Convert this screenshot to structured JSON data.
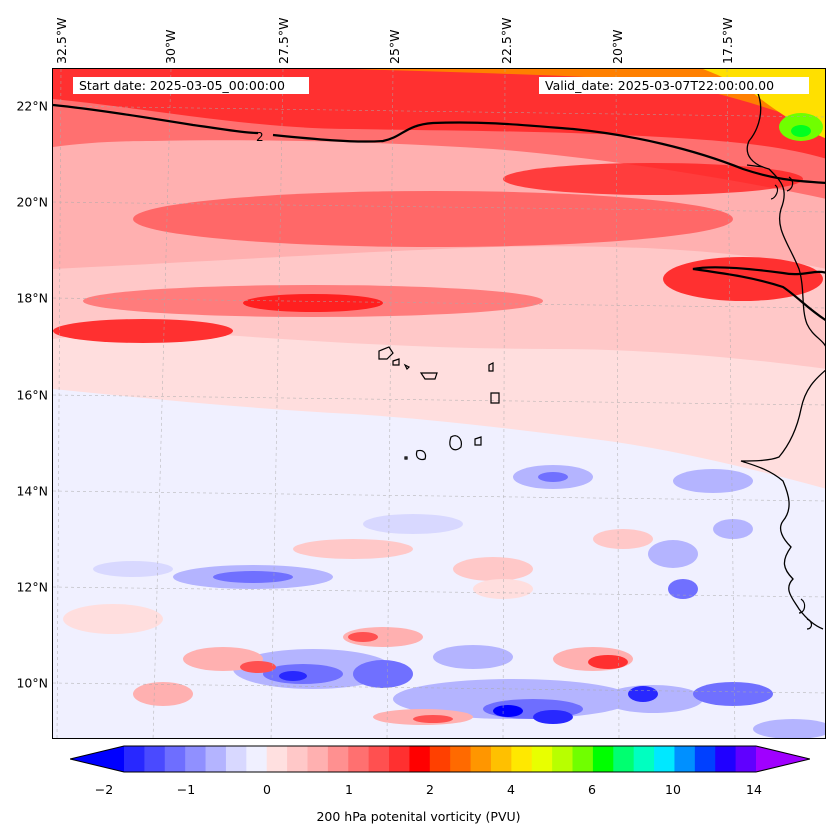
{
  "map": {
    "start_label": "Start date: 2025-03-05_00:00:00",
    "valid_label": "Valid_date: 2025-03-07T22:00:00.00",
    "contour_label": "2",
    "lon_labels": [
      "32.5°W",
      "30°W",
      "27.5°W",
      "25°W",
      "22.5°W",
      "20°W",
      "17.5°W"
    ],
    "lat_labels": [
      "22°N",
      "20°N",
      "18°N",
      "16°N",
      "14°N",
      "12°N",
      "10°N"
    ],
    "colors": {
      "background_low": "#f0f0ff",
      "pink_light": "#ffdede",
      "pink": "#ffb4b4",
      "red_mid": "#ff6e6e",
      "red": "#ff2020",
      "orange": "#ff8000",
      "yellow": "#ffe000",
      "green": "#00ff20",
      "blue_light": "#b4b4ff",
      "blue": "#5050ff",
      "blue_dark": "#0000ff",
      "contour": "#000000"
    },
    "islands": [
      "cape-verde-islands"
    ],
    "coast": "west-africa-coastline"
  },
  "colorbar": {
    "label": "200 hPa potenital vorticity (PVU)",
    "ticks": [
      "−2",
      "−1",
      "0",
      "1",
      "2",
      "4",
      "6",
      "10",
      "14"
    ],
    "tick_values": [
      -2,
      -1,
      0,
      1,
      2,
      4,
      6,
      10,
      14
    ],
    "colors": [
      "#0000ff",
      "#2828ff",
      "#4a4aff",
      "#6e6eff",
      "#9090ff",
      "#b4b4ff",
      "#d8d8ff",
      "#f0f0ff",
      "#ffe0e0",
      "#ffc8c8",
      "#ffb0b0",
      "#ff9090",
      "#ff7070",
      "#ff5050",
      "#ff3030",
      "#ff0000",
      "#ff4000",
      "#ff6a00",
      "#ff9600",
      "#ffc000",
      "#ffe800",
      "#e8ff00",
      "#b8ff00",
      "#70ff00",
      "#00ff00",
      "#00ff70",
      "#00ffc0",
      "#00e8ff",
      "#0090ff",
      "#0040ff",
      "#2000ff",
      "#6000ff",
      "#a000ff"
    ]
  }
}
